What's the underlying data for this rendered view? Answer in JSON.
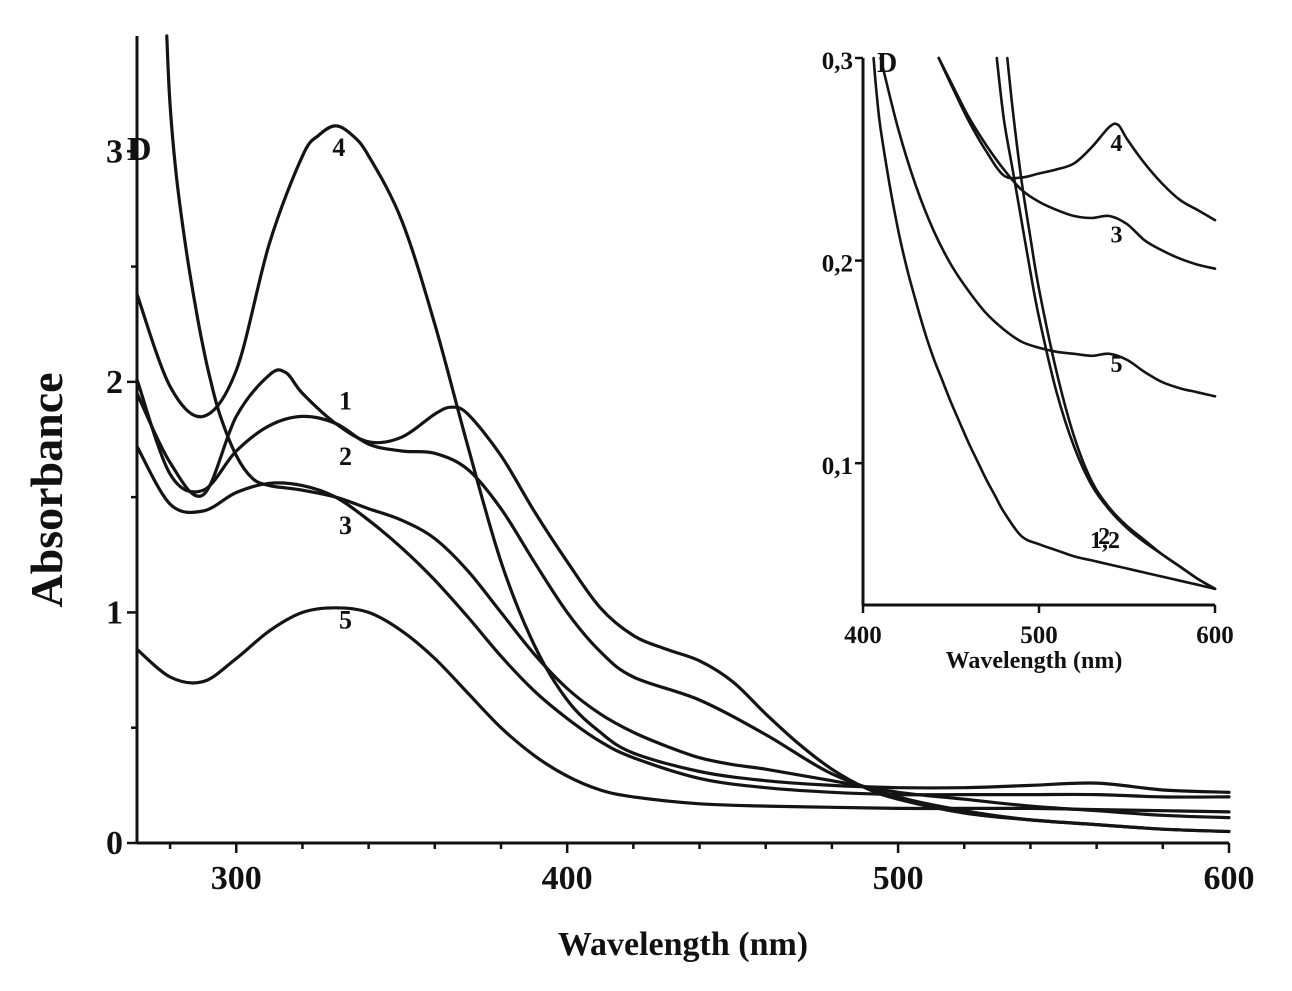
{
  "chart_data": [
    {
      "id": "main",
      "type": "line",
      "xlabel": "Wavelength (nm)",
      "ylabel": "Absorbance",
      "corner_label": "D",
      "xlim": [
        270,
        600
      ],
      "ylim": [
        0,
        3.5
      ],
      "xticks": [
        300,
        400,
        500,
        600
      ],
      "yticks": [
        0,
        1,
        2,
        3
      ],
      "series": [
        {
          "name": "1",
          "label_at": [
            333,
            1.88
          ],
          "x": [
            270,
            280,
            290,
            300,
            310,
            315,
            320,
            330,
            340,
            350,
            360,
            365,
            370,
            380,
            390,
            400,
            410,
            420,
            430,
            440,
            450,
            460,
            470,
            480,
            490,
            500,
            520,
            540,
            560,
            580,
            600
          ],
          "y": [
            1.95,
            1.65,
            1.51,
            1.85,
            2.03,
            2.04,
            1.95,
            1.82,
            1.74,
            1.76,
            1.86,
            1.89,
            1.86,
            1.68,
            1.44,
            1.22,
            1.02,
            0.9,
            0.84,
            0.79,
            0.7,
            0.56,
            0.43,
            0.32,
            0.24,
            0.19,
            0.13,
            0.1,
            0.08,
            0.06,
            0.05
          ]
        },
        {
          "name": "2",
          "label_at": [
            333,
            1.64
          ],
          "x": [
            270,
            280,
            290,
            300,
            310,
            320,
            330,
            340,
            350,
            360,
            370,
            380,
            390,
            400,
            410,
            420,
            440,
            460,
            480,
            500,
            520,
            540,
            560,
            580,
            600
          ],
          "y": [
            2.01,
            1.6,
            1.53,
            1.7,
            1.81,
            1.85,
            1.82,
            1.73,
            1.7,
            1.69,
            1.62,
            1.45,
            1.22,
            1.0,
            0.83,
            0.72,
            0.62,
            0.47,
            0.3,
            0.2,
            0.14,
            0.1,
            0.08,
            0.06,
            0.05
          ]
        },
        {
          "name": "3",
          "label_at": [
            333,
            1.34
          ],
          "x": [
            270,
            280,
            290,
            300,
            310,
            320,
            330,
            340,
            350,
            360,
            370,
            380,
            390,
            400,
            410,
            420,
            440,
            460,
            480,
            500,
            520,
            540,
            560,
            580,
            600
          ],
          "y": [
            1.72,
            1.47,
            1.44,
            1.52,
            1.56,
            1.55,
            1.5,
            1.4,
            1.28,
            1.14,
            0.98,
            0.81,
            0.66,
            0.54,
            0.44,
            0.37,
            0.28,
            0.24,
            0.22,
            0.21,
            0.21,
            0.21,
            0.21,
            0.2,
            0.2
          ]
        },
        {
          "name": "4",
          "label_at": [
            331,
            2.98
          ],
          "x": [
            270,
            280,
            290,
            300,
            310,
            320,
            325,
            330,
            335,
            340,
            350,
            360,
            370,
            380,
            390,
            400,
            410,
            420,
            440,
            460,
            480,
            500,
            520,
            540,
            560,
            580,
            600
          ],
          "y": [
            2.38,
            1.98,
            1.85,
            2.05,
            2.6,
            2.98,
            3.07,
            3.11,
            3.07,
            2.98,
            2.7,
            2.25,
            1.72,
            1.22,
            0.86,
            0.62,
            0.48,
            0.39,
            0.31,
            0.27,
            0.25,
            0.24,
            0.24,
            0.25,
            0.26,
            0.23,
            0.22
          ]
        },
        {
          "name": "5",
          "label_at": [
            333,
            0.93
          ],
          "x": [
            270,
            280,
            290,
            300,
            310,
            320,
            330,
            340,
            350,
            360,
            370,
            380,
            390,
            400,
            410,
            420,
            440,
            460,
            480,
            500,
            520,
            540,
            560,
            580,
            600
          ],
          "y": [
            0.84,
            0.72,
            0.7,
            0.8,
            0.92,
            1.0,
            1.02,
            1.0,
            0.92,
            0.8,
            0.65,
            0.5,
            0.38,
            0.29,
            0.23,
            0.2,
            0.17,
            0.16,
            0.155,
            0.15,
            0.15,
            0.15,
            0.145,
            0.14,
            0.135
          ]
        },
        {
          "name": "D",
          "label_at": null,
          "x": [
            279,
            280,
            282,
            285,
            288,
            290,
            292,
            295,
            300,
            305,
            310,
            315,
            320,
            330,
            340,
            350,
            360,
            370,
            380,
            390,
            400,
            410,
            420,
            430,
            440,
            450,
            460,
            480,
            500,
            520,
            540,
            560,
            580,
            600
          ],
          "y": [
            3.5,
            3.2,
            2.88,
            2.56,
            2.3,
            2.15,
            2.02,
            1.86,
            1.68,
            1.58,
            1.55,
            1.54,
            1.53,
            1.5,
            1.45,
            1.4,
            1.32,
            1.18,
            1.0,
            0.82,
            0.67,
            0.56,
            0.48,
            0.42,
            0.37,
            0.34,
            0.32,
            0.27,
            0.22,
            0.19,
            0.16,
            0.14,
            0.12,
            0.11
          ]
        }
      ]
    },
    {
      "id": "inset",
      "type": "line",
      "xlabel": "Wavelength (nm)",
      "ylabel": "",
      "corner_label": "D",
      "xlim": [
        400,
        600
      ],
      "ylim": [
        0.03,
        0.3
      ],
      "xticks": [
        400,
        500,
        600
      ],
      "xtick_labels": [
        "400",
        "500",
        "600"
      ],
      "yticks": [
        0.1,
        0.2,
        0.3
      ],
      "ytick_labels": [
        "0,1",
        "0,2",
        "0,3"
      ],
      "series": [
        {
          "name": "4",
          "label_at": [
            544,
            0.254
          ],
          "x": [
            443,
            450,
            460,
            470,
            480,
            490,
            500,
            510,
            520,
            530,
            540,
            545,
            550,
            560,
            570,
            580,
            590,
            600
          ],
          "y": [
            0.3,
            0.287,
            0.269,
            0.254,
            0.242,
            0.241,
            0.243,
            0.245,
            0.248,
            0.256,
            0.266,
            0.267,
            0.26,
            0.248,
            0.238,
            0.23,
            0.225,
            0.22
          ]
        },
        {
          "name": "3",
          "label_at": [
            544,
            0.209
          ],
          "x": [
            443,
            450,
            460,
            470,
            480,
            490,
            500,
            510,
            520,
            530,
            540,
            550,
            560,
            570,
            580,
            590,
            600
          ],
          "y": [
            0.3,
            0.288,
            0.271,
            0.257,
            0.245,
            0.235,
            0.229,
            0.225,
            0.222,
            0.221,
            0.222,
            0.218,
            0.21,
            0.205,
            0.201,
            0.198,
            0.196
          ]
        },
        {
          "name": "5",
          "label_at": [
            544,
            0.145
          ],
          "x": [
            410,
            420,
            430,
            440,
            450,
            460,
            470,
            480,
            490,
            500,
            510,
            520,
            530,
            540,
            550,
            560,
            570,
            580,
            590,
            600
          ],
          "y": [
            0.3,
            0.265,
            0.237,
            0.215,
            0.198,
            0.185,
            0.174,
            0.166,
            0.16,
            0.157,
            0.155,
            0.154,
            0.153,
            0.154,
            0.151,
            0.145,
            0.14,
            0.137,
            0.135,
            0.133
          ]
        },
        {
          "name": "1",
          "label_at": null,
          "x": [
            476,
            480,
            485,
            490,
            495,
            500,
            510,
            520,
            530,
            540,
            550,
            560,
            570,
            580,
            590,
            600
          ],
          "y": [
            0.3,
            0.27,
            0.245,
            0.22,
            0.195,
            0.172,
            0.135,
            0.108,
            0.089,
            0.077,
            0.068,
            0.061,
            0.055,
            0.049,
            0.043,
            0.038
          ]
        },
        {
          "name": "2",
          "label_at": [
            537,
            0.06
          ],
          "x": [
            482,
            485,
            490,
            495,
            500,
            510,
            520,
            530,
            540,
            550,
            560,
            570,
            580,
            590,
            600
          ],
          "y": [
            0.3,
            0.275,
            0.24,
            0.212,
            0.186,
            0.145,
            0.113,
            0.091,
            0.078,
            0.069,
            0.062,
            0.055,
            0.049,
            0.043,
            0.038
          ]
        },
        {
          "name": "1,2",
          "label_at": null,
          "x": [],
          "y": []
        },
        {
          "name": "D",
          "label_at": null,
          "x": [
            406,
            408,
            410,
            415,
            420,
            425,
            430,
            435,
            440,
            445,
            450,
            455,
            460,
            465,
            470,
            475,
            480,
            490,
            500,
            510,
            520,
            530,
            540,
            550,
            560,
            570,
            580,
            590,
            600
          ],
          "y": [
            0.3,
            0.28,
            0.265,
            0.238,
            0.215,
            0.196,
            0.18,
            0.165,
            0.152,
            0.141,
            0.13,
            0.12,
            0.11,
            0.101,
            0.092,
            0.084,
            0.076,
            0.064,
            0.06,
            0.057,
            0.054,
            0.052,
            0.05,
            0.048,
            0.046,
            0.044,
            0.042,
            0.04,
            0.038
          ]
        }
      ]
    }
  ]
}
